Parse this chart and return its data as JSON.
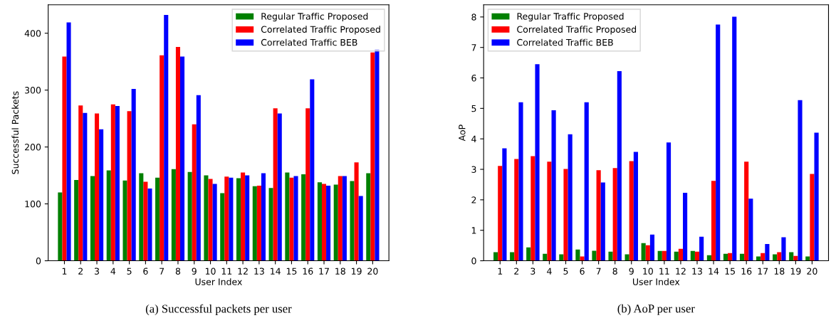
{
  "chart_data": [
    {
      "type": "bar",
      "xlabel": "User Index",
      "ylabel": "Successful Packets",
      "categories": [
        "1",
        "2",
        "3",
        "4",
        "5",
        "6",
        "7",
        "8",
        "9",
        "10",
        "11",
        "12",
        "13",
        "14",
        "15",
        "16",
        "17",
        "18",
        "19",
        "20"
      ],
      "ylim": [
        0,
        450
      ],
      "yticks": [
        0,
        100,
        200,
        300,
        400
      ],
      "grid": false,
      "legend": "top right",
      "annotations": [
        "(a) Successful packets per user"
      ],
      "series": [
        {
          "name": "Regular Traffic Proposed",
          "color": "#008000",
          "values": [
            120,
            142,
            149,
            159,
            141,
            154,
            146,
            161,
            156,
            150,
            119,
            145,
            131,
            128,
            155,
            152,
            138,
            134,
            140,
            154
          ]
        },
        {
          "name": "Correlated Traffic Proposed",
          "color": "#ff0000",
          "values": [
            359,
            273,
            259,
            275,
            263,
            139,
            361,
            376,
            240,
            144,
            148,
            155,
            132,
            268,
            146,
            268,
            135,
            149,
            173,
            366
          ]
        },
        {
          "name": "Correlated Traffic BEB",
          "color": "#0000ff",
          "values": [
            419,
            260,
            231,
            272,
            302,
            127,
            432,
            359,
            291,
            135,
            146,
            150,
            154,
            259,
            149,
            319,
            132,
            149,
            114,
            372
          ]
        }
      ]
    },
    {
      "type": "bar",
      "xlabel": "User Index",
      "ylabel": "AoP",
      "categories": [
        "1",
        "2",
        "3",
        "4",
        "5",
        "6",
        "7",
        "8",
        "9",
        "10",
        "11",
        "12",
        "13",
        "14",
        "15",
        "16",
        "17",
        "18",
        "19",
        "20"
      ],
      "ylim": [
        0,
        8.4
      ],
      "yticks": [
        0,
        1,
        2,
        3,
        4,
        5,
        6,
        7,
        8
      ],
      "grid": false,
      "legend": "top left",
      "annotations": [
        "(b) AoP per user"
      ],
      "series": [
        {
          "name": "Regular Traffic Proposed",
          "color": "#008000",
          "values": [
            0.28,
            0.28,
            0.44,
            0.23,
            0.21,
            0.37,
            0.33,
            0.3,
            0.21,
            0.58,
            0.32,
            0.3,
            0.32,
            0.18,
            0.23,
            0.23,
            0.14,
            0.21,
            0.28,
            0.14
          ]
        },
        {
          "name": "Correlated Traffic Proposed",
          "color": "#ff0000",
          "values": [
            3.11,
            3.34,
            3.43,
            3.25,
            3.01,
            0.14,
            2.97,
            3.04,
            3.27,
            0.51,
            0.32,
            0.39,
            0.3,
            2.62,
            0.25,
            3.25,
            0.25,
            0.28,
            0.16,
            2.85
          ]
        },
        {
          "name": "Correlated Traffic BEB",
          "color": "#0000ff",
          "values": [
            3.69,
            5.2,
            6.45,
            4.94,
            4.15,
            5.2,
            2.57,
            6.22,
            3.57,
            0.86,
            3.88,
            2.23,
            0.79,
            7.75,
            8.01,
            2.04,
            0.55,
            0.77,
            5.27,
            4.2
          ]
        }
      ]
    }
  ]
}
